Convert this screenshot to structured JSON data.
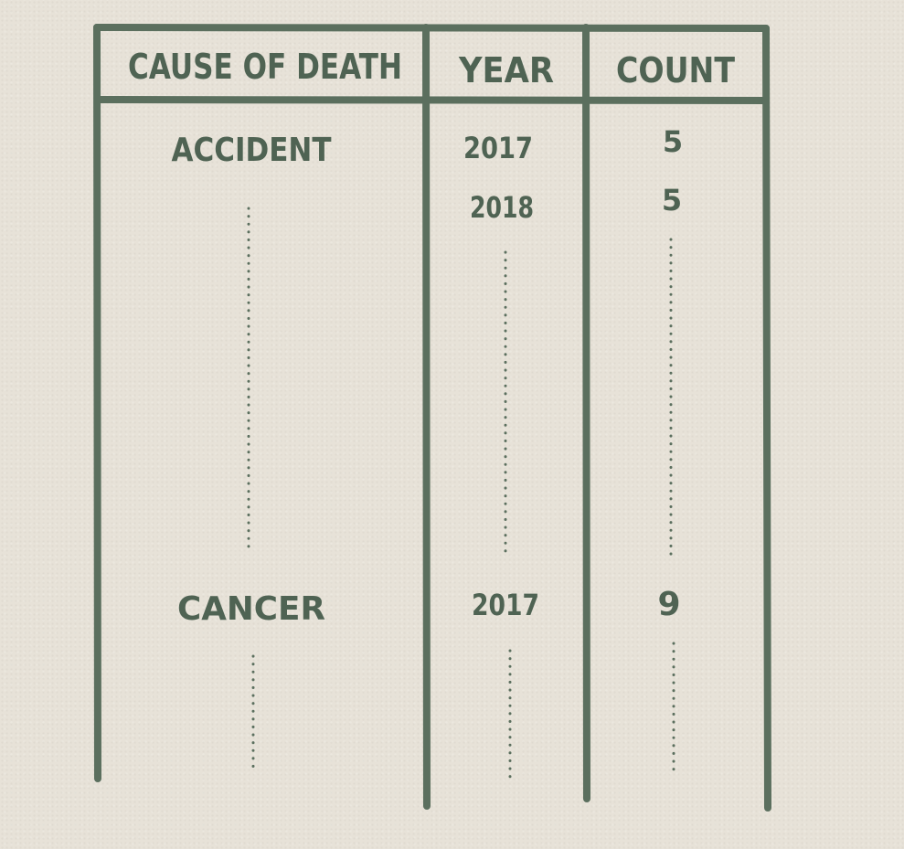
{
  "table": {
    "headers": {
      "cause": "CAUSE OF DEATH",
      "year": "YEAR",
      "count": "COUNT"
    },
    "rows": [
      {
        "cause": "ACCIDENT",
        "year": "2017",
        "count": "5"
      },
      {
        "cause": "",
        "year": "2018",
        "count": "5"
      },
      {
        "cause": "CANCER",
        "year": "2017",
        "count": "9"
      }
    ]
  },
  "colors": {
    "ink": "#5b6f5e",
    "paper": "#e7e2d8"
  }
}
